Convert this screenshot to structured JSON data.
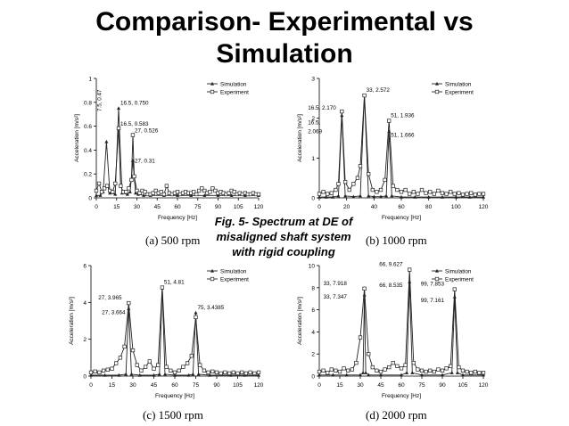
{
  "title_line1": "Comparison- Experimental vs",
  "title_line2": "Simulation",
  "figure_caption": [
    "Fig. 5- Spectrum at DE of",
    "misaligned shaft system",
    "with rigid coupling"
  ],
  "colors": {
    "series": "#222222",
    "axis": "#000000",
    "background": "#ffffff"
  },
  "chart_data": [
    {
      "type": "line",
      "caption": "(a) 500 rpm",
      "xlabel": "Frequency [Hz]",
      "ylabel": "Acceleration [m/s²]",
      "xlim": [
        0,
        120
      ],
      "ylim": [
        0,
        1
      ],
      "xticks": [
        0,
        15,
        30,
        45,
        60,
        75,
        90,
        105,
        120
      ],
      "yticks": [
        0,
        0.2,
        0.4,
        0.6,
        0.8,
        1
      ],
      "ytick_labels": [
        "0",
        "0.2",
        "0.4",
        "0.6",
        "0.8",
        "1"
      ],
      "legend": [
        "Simulation",
        "Experiment"
      ],
      "legend_position": "top-right",
      "series": [
        {
          "name": "Simulation",
          "marker": "triangle",
          "x": [
            0,
            3,
            5,
            7.5,
            10,
            14,
            16.5,
            19,
            23,
            25,
            27,
            29,
            31,
            35,
            40,
            50,
            60,
            70,
            80,
            90,
            100,
            110,
            120
          ],
          "y": [
            0.02,
            0.02,
            0.05,
            0.47,
            0.04,
            0.03,
            0.75,
            0.04,
            0.03,
            0.05,
            0.31,
            0.04,
            0.03,
            0.02,
            0.02,
            0.02,
            0.02,
            0.02,
            0.02,
            0.02,
            0.02,
            0.02,
            0.02
          ]
        },
        {
          "name": "Experiment",
          "marker": "square",
          "x": [
            0,
            2,
            4,
            6,
            8,
            10,
            12,
            14,
            16.5,
            18,
            20,
            22,
            24,
            26,
            27,
            28,
            30,
            32,
            34,
            36,
            38,
            40,
            42,
            44,
            46,
            48,
            50,
            52,
            54,
            56,
            58,
            60,
            62,
            64,
            66,
            68,
            70,
            72,
            74,
            76,
            78,
            80,
            82,
            84,
            86,
            88,
            90,
            92,
            94,
            96,
            98,
            100,
            102,
            104,
            106,
            108,
            110,
            112,
            114,
            116,
            118,
            120
          ],
          "y": [
            0.06,
            0.12,
            0.05,
            0.08,
            0.1,
            0.06,
            0.05,
            0.12,
            0.583,
            0.1,
            0.05,
            0.05,
            0.08,
            0.15,
            0.526,
            0.18,
            0.06,
            0.04,
            0.06,
            0.05,
            0.03,
            0.03,
            0.04,
            0.06,
            0.04,
            0.05,
            0.03,
            0.1,
            0.04,
            0.03,
            0.04,
            0.05,
            0.03,
            0.04,
            0.05,
            0.04,
            0.04,
            0.05,
            0.03,
            0.06,
            0.08,
            0.06,
            0.04,
            0.05,
            0.08,
            0.06,
            0.04,
            0.05,
            0.04,
            0.03,
            0.04,
            0.06,
            0.05,
            0.03,
            0.04,
            0.03,
            0.04,
            0.03,
            0.03,
            0.04,
            0.03,
            0.03
          ]
        }
      ],
      "annotations": [
        {
          "text": "7.5, 0.47",
          "x": 7.5,
          "y": 0.47,
          "rotated": true
        },
        {
          "text": "16.5, 0.750",
          "x": 16.5,
          "y": 0.75
        },
        {
          "text": "16.5, 0.583",
          "x": 16.5,
          "y": 0.583
        },
        {
          "text": "27, 0.526",
          "x": 27,
          "y": 0.526
        },
        {
          "text": "27, 0.31",
          "x": 27,
          "y": 0.31
        }
      ]
    },
    {
      "type": "line",
      "caption": "(b) 1000 rpm",
      "xlabel": "Frequency [Hz]",
      "ylabel": "Acceleration [m/s²]",
      "xlim": [
        0,
        120
      ],
      "ylim": [
        0,
        3
      ],
      "xticks": [
        0,
        20,
        40,
        60,
        80,
        100,
        120
      ],
      "yticks": [
        0,
        1,
        2,
        3
      ],
      "ytick_labels": [
        "0",
        "1",
        "2",
        "3"
      ],
      "legend": [
        "Simulation",
        "Experiment"
      ],
      "legend_position": "top-right",
      "series": [
        {
          "name": "Simulation",
          "marker": "triangle",
          "x": [
            0,
            5,
            10,
            14,
            16.5,
            19,
            25,
            30,
            33,
            36,
            40,
            45,
            49,
            51,
            53,
            60,
            70,
            80,
            90,
            100,
            110,
            120
          ],
          "y": [
            0.02,
            0.02,
            0.02,
            0.05,
            2.069,
            0.05,
            0.03,
            0.05,
            2.572,
            0.05,
            0.03,
            0.03,
            0.05,
            1.666,
            0.05,
            0.02,
            0.02,
            0.02,
            0.02,
            0.02,
            0.02,
            0.02
          ]
        },
        {
          "name": "Experiment",
          "marker": "square",
          "x": [
            0,
            3,
            6,
            9,
            12,
            14,
            16.5,
            19,
            22,
            25,
            28,
            30,
            33,
            36,
            39,
            42,
            45,
            48,
            51,
            54,
            57,
            60,
            63,
            66,
            69,
            72,
            75,
            78,
            81,
            84,
            87,
            90,
            93,
            96,
            99,
            102,
            105,
            108,
            111,
            114,
            117,
            120
          ],
          "y": [
            0.1,
            0.15,
            0.1,
            0.12,
            0.2,
            0.35,
            2.17,
            0.4,
            0.2,
            0.35,
            0.5,
            0.8,
            2.572,
            0.6,
            0.2,
            0.15,
            0.2,
            0.45,
            1.936,
            0.3,
            0.2,
            0.15,
            0.2,
            0.1,
            0.15,
            0.1,
            0.2,
            0.12,
            0.15,
            0.1,
            0.18,
            0.12,
            0.1,
            0.15,
            0.1,
            0.12,
            0.08,
            0.1,
            0.12,
            0.08,
            0.1,
            0.1
          ]
        }
      ],
      "annotations": [
        {
          "text": "16.5, 2.170",
          "x": 16.5,
          "y": 2.17
        },
        {
          "text": "16.5,",
          "x": 16.5,
          "y": 2.069
        },
        {
          "text": "2.069",
          "x": 16.5,
          "y": 2.069
        },
        {
          "text": "33, 2.572",
          "x": 33,
          "y": 2.572
        },
        {
          "text": "51, 1.936",
          "x": 51,
          "y": 1.936
        },
        {
          "text": "51, 1.666",
          "x": 51,
          "y": 1.666
        }
      ]
    },
    {
      "type": "line",
      "caption": "(c) 1500 rpm",
      "xlabel": "Frequency [Hz]",
      "ylabel": "Acceleration [m/s²]",
      "xlim": [
        0,
        120
      ],
      "ylim": [
        0,
        6
      ],
      "xticks": [
        0,
        15,
        30,
        45,
        60,
        75,
        90,
        105,
        120
      ],
      "yticks": [
        0,
        2,
        4,
        6
      ],
      "ytick_labels": [
        "0",
        "2",
        "4",
        "6"
      ],
      "legend": [
        "Simulation",
        "Experiment"
      ],
      "legend_position": "top-right",
      "series": [
        {
          "name": "Simulation",
          "marker": "triangle",
          "x": [
            0,
            10,
            20,
            25,
            27,
            29,
            35,
            45,
            49,
            51,
            53,
            60,
            70,
            73,
            75,
            77,
            85,
            100,
            110,
            120
          ],
          "y": [
            0.05,
            0.05,
            0.05,
            0.1,
            3.664,
            0.1,
            0.05,
            0.05,
            0.1,
            4.81,
            0.1,
            0.05,
            0.05,
            0.1,
            3.4385,
            0.1,
            0.05,
            0.05,
            0.05,
            0.05
          ]
        },
        {
          "name": "Experiment",
          "marker": "square",
          "x": [
            0,
            3,
            6,
            9,
            12,
            15,
            18,
            21,
            24,
            27,
            30,
            33,
            36,
            39,
            42,
            45,
            48,
            51,
            54,
            57,
            60,
            63,
            66,
            69,
            72,
            75,
            78,
            81,
            84,
            87,
            90,
            93,
            96,
            99,
            102,
            105,
            108,
            111,
            114,
            117,
            120
          ],
          "y": [
            0.2,
            0.25,
            0.2,
            0.3,
            0.35,
            0.4,
            0.7,
            1.0,
            1.6,
            3.965,
            1.4,
            0.6,
            0.3,
            0.5,
            0.8,
            0.4,
            0.6,
            4.81,
            0.5,
            0.3,
            0.2,
            0.3,
            0.5,
            0.7,
            1.1,
            3.2,
            0.6,
            0.3,
            0.2,
            0.25,
            0.2,
            0.15,
            0.2,
            0.15,
            0.2,
            0.15,
            0.2,
            0.15,
            0.2,
            0.15,
            0.2
          ]
        }
      ],
      "annotations": [
        {
          "text": "27, 3.965",
          "x": 27,
          "y": 3.965
        },
        {
          "text": "27, 3.664",
          "x": 27,
          "y": 3.664
        },
        {
          "text": "51, 4.81",
          "x": 51,
          "y": 4.81
        },
        {
          "text": "75, 3.4385",
          "x": 75,
          "y": 3.4385
        }
      ]
    },
    {
      "type": "line",
      "caption": "(d) 2000 rpm",
      "xlabel": "Frequency [Hz]",
      "ylabel": "Acceleration [m/s²]",
      "xlim": [
        0,
        120
      ],
      "ylim": [
        0,
        10
      ],
      "xticks": [
        0,
        15,
        30,
        45,
        60,
        75,
        90,
        105,
        120
      ],
      "yticks": [
        0,
        2,
        4,
        6,
        8,
        10
      ],
      "ytick_labels": [
        "0",
        "2",
        "4",
        "6",
        "8",
        "10"
      ],
      "legend": [
        "Simulation",
        "Experiment"
      ],
      "legend_position": "top-right",
      "series": [
        {
          "name": "Simulation",
          "marker": "triangle",
          "x": [
            0,
            10,
            20,
            30,
            32,
            33,
            34,
            36,
            45,
            60,
            64,
            66,
            68,
            75,
            90,
            97,
            99,
            101,
            105,
            120
          ],
          "y": [
            0.1,
            0.1,
            0.1,
            0.1,
            0.3,
            7.347,
            0.3,
            0.1,
            0.1,
            0.1,
            0.3,
            8.535,
            0.3,
            0.1,
            0.1,
            0.3,
            7.161,
            0.3,
            0.1,
            0.1
          ]
        },
        {
          "name": "Experiment",
          "marker": "square",
          "x": [
            0,
            3,
            6,
            9,
            12,
            15,
            18,
            21,
            24,
            27,
            30,
            33,
            36,
            39,
            42,
            45,
            48,
            51,
            54,
            57,
            60,
            63,
            66,
            69,
            72,
            75,
            78,
            81,
            84,
            87,
            90,
            93,
            96,
            99,
            102,
            105,
            108,
            111,
            114,
            117,
            120
          ],
          "y": [
            0.4,
            0.5,
            0.3,
            0.6,
            0.5,
            0.4,
            0.7,
            0.5,
            0.6,
            1.2,
            3.5,
            7.918,
            2.0,
            0.8,
            0.5,
            0.4,
            0.6,
            0.8,
            1.2,
            0.9,
            0.7,
            1.0,
            9.627,
            1.2,
            0.6,
            0.5,
            0.4,
            0.5,
            0.4,
            0.6,
            0.5,
            0.7,
            0.9,
            7.853,
            0.8,
            0.5,
            0.4,
            0.3,
            0.4,
            0.3,
            0.3
          ]
        }
      ],
      "annotations": [
        {
          "text": "33, 7.918",
          "x": 33,
          "y": 7.918
        },
        {
          "text": "33, 7.347",
          "x": 33,
          "y": 7.347
        },
        {
          "text": "66, 9.627",
          "x": 66,
          "y": 9.627
        },
        {
          "text": "66, 8.535",
          "x": 66,
          "y": 8.535
        },
        {
          "text": "99, 7.853",
          "x": 99,
          "y": 7.853
        },
        {
          "text": "99, 7.161",
          "x": 99,
          "y": 7.161
        }
      ]
    }
  ]
}
